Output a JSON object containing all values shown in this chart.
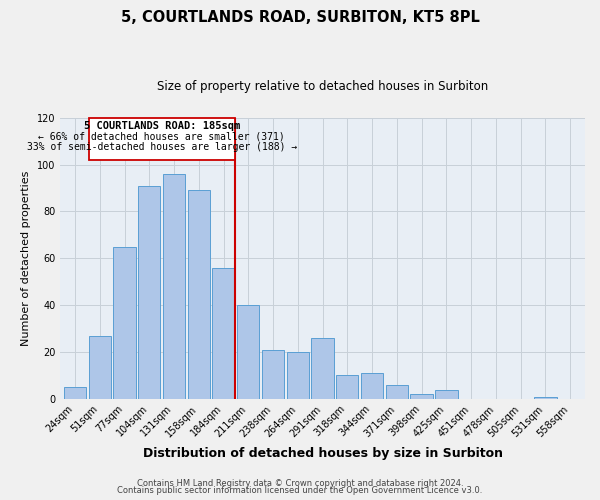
{
  "title": "5, COURTLANDS ROAD, SURBITON, KT5 8PL",
  "subtitle": "Size of property relative to detached houses in Surbiton",
  "xlabel": "Distribution of detached houses by size in Surbiton",
  "ylabel": "Number of detached properties",
  "categories": [
    "24sqm",
    "51sqm",
    "77sqm",
    "104sqm",
    "131sqm",
    "158sqm",
    "184sqm",
    "211sqm",
    "238sqm",
    "264sqm",
    "291sqm",
    "318sqm",
    "344sqm",
    "371sqm",
    "398sqm",
    "425sqm",
    "451sqm",
    "478sqm",
    "505sqm",
    "531sqm",
    "558sqm"
  ],
  "values": [
    5,
    27,
    65,
    91,
    96,
    89,
    56,
    40,
    21,
    20,
    26,
    10,
    11,
    6,
    2,
    4,
    0,
    0,
    0,
    1,
    0
  ],
  "bar_color": "#aec6e8",
  "bar_edge_color": "#5a9fd4",
  "highlight_index": 6,
  "highlight_line_color": "#cc0000",
  "annotation_box_edge_color": "#cc0000",
  "annotation_line1": "5 COURTLANDS ROAD: 185sqm",
  "annotation_line2": "← 66% of detached houses are smaller (371)",
  "annotation_line3": "33% of semi-detached houses are larger (188) →",
  "ylim": [
    0,
    120
  ],
  "yticks": [
    0,
    20,
    40,
    60,
    80,
    100,
    120
  ],
  "footer_line1": "Contains HM Land Registry data © Crown copyright and database right 2024.",
  "footer_line2": "Contains public sector information licensed under the Open Government Licence v3.0.",
  "background_color": "#f0f0f0",
  "plot_bg_color": "#e8eef5",
  "grid_color": "#c8d0d8",
  "title_fontsize": 10.5,
  "subtitle_fontsize": 8.5,
  "ylabel_fontsize": 8,
  "xlabel_fontsize": 9,
  "tick_fontsize": 7,
  "footer_fontsize": 6
}
